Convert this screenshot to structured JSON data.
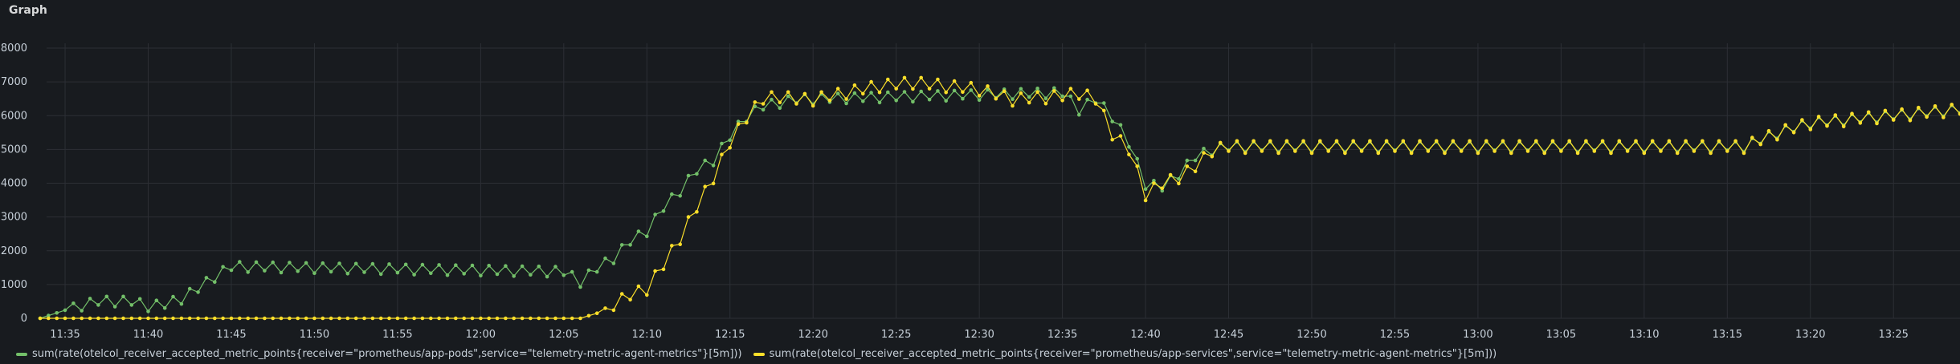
{
  "panel": {
    "title": "Graph"
  },
  "colors": {
    "background": "#181b1f",
    "grid": "#2c2f35",
    "series_a": "#73bf69",
    "series_b": "#fade2a"
  },
  "chart_data": {
    "type": "line",
    "x_tick_labels": [
      "11:35",
      "11:40",
      "11:45",
      "11:50",
      "11:55",
      "12:00",
      "12:05",
      "12:10",
      "12:15",
      "12:20",
      "12:25",
      "12:30",
      "12:35",
      "12:40",
      "12:45",
      "12:50",
      "12:55",
      "13:00",
      "13:05",
      "13:10",
      "13:15",
      "13:20",
      "13:25"
    ],
    "y_tick_labels": [
      "0",
      "1000",
      "2000",
      "3000",
      "4000",
      "5000",
      "6000",
      "7000",
      "8000"
    ],
    "ylim": [
      0,
      8000
    ],
    "xlim": [
      "11:33:30",
      "13:29"
    ],
    "grid": true,
    "legend_position": "bottom",
    "series": [
      {
        "name": "sum(rate(otelcol_receiver_accepted_metric_points{receiver=\"prometheus/app-pods\",service=\"telemetry-metric-agent-metrics\"}[5m]))",
        "keyframes": [
          [
            "11:33:30",
            0
          ],
          [
            "11:36",
            400
          ],
          [
            "11:37",
            520
          ],
          [
            "11:39",
            520
          ],
          [
            "11:40",
            380
          ],
          [
            "11:41",
            430
          ],
          [
            "11:42",
            600
          ],
          [
            "11:43",
            900
          ],
          [
            "11:44",
            1250
          ],
          [
            "11:45",
            1550
          ],
          [
            "12:05",
            1400
          ],
          [
            "12:06",
            1100
          ],
          [
            "12:07",
            1500
          ],
          [
            "12:08",
            1800
          ],
          [
            "12:09",
            2300
          ],
          [
            "12:10",
            2600
          ],
          [
            "12:11",
            3300
          ],
          [
            "12:12",
            3800
          ],
          [
            "12:13",
            4400
          ],
          [
            "12:14",
            4700
          ],
          [
            "12:15",
            5400
          ],
          [
            "12:16",
            6000
          ],
          [
            "12:17",
            6300
          ],
          [
            "12:18",
            6400
          ],
          [
            "12:19",
            6500
          ],
          [
            "12:35",
            6700
          ],
          [
            "12:36",
            6200
          ],
          [
            "12:37",
            6500
          ],
          [
            "12:38",
            6000
          ],
          [
            "12:39",
            5200
          ],
          [
            "12:40",
            4000
          ],
          [
            "12:41",
            3900
          ],
          [
            "12:42",
            4300
          ],
          [
            "12:43",
            4800
          ],
          [
            "12:44",
            5000
          ],
          [
            "12:45",
            5100
          ],
          [
            "13:16",
            5100
          ],
          [
            "13:18",
            5500
          ],
          [
            "13:20",
            5800
          ],
          [
            "13:29",
            6200
          ]
        ],
        "wiggle": 250
      },
      {
        "name": "sum(rate(otelcol_receiver_accepted_metric_points{receiver=\"prometheus/app-services\",service=\"telemetry-metric-agent-metrics\"}[5m]))",
        "keyframes": [
          [
            "11:33:30",
            0
          ],
          [
            "12:06",
            0
          ],
          [
            "12:07",
            150
          ],
          [
            "12:08",
            450
          ],
          [
            "12:09",
            700
          ],
          [
            "12:10",
            900
          ],
          [
            "12:11",
            1600
          ],
          [
            "12:12",
            2400
          ],
          [
            "12:13",
            3300
          ],
          [
            "12:14",
            4200
          ],
          [
            "12:15",
            5200
          ],
          [
            "12:16",
            6000
          ],
          [
            "12:17",
            6500
          ],
          [
            "12:18",
            6600
          ],
          [
            "12:19",
            6500
          ],
          [
            "12:20",
            6500
          ],
          [
            "12:24",
            6900
          ],
          [
            "12:26",
            7000
          ],
          [
            "12:30",
            6800
          ],
          [
            "12:32",
            6500
          ],
          [
            "12:35",
            6600
          ],
          [
            "12:36",
            6700
          ],
          [
            "12:37",
            6500
          ],
          [
            "12:38",
            5500
          ],
          [
            "12:39",
            5000
          ],
          [
            "12:40",
            3700
          ],
          [
            "12:41",
            4000
          ],
          [
            "12:42",
            4200
          ],
          [
            "12:43",
            4500
          ],
          [
            "12:44",
            5000
          ],
          [
            "12:45",
            5100
          ],
          [
            "13:16",
            5100
          ],
          [
            "13:18",
            5500
          ],
          [
            "13:20",
            5800
          ],
          [
            "13:29",
            6200
          ]
        ],
        "wiggle": 300
      }
    ]
  },
  "legend": {
    "items": [
      {
        "label": "sum(rate(otelcol_receiver_accepted_metric_points{receiver=\"prometheus/app-pods\",service=\"telemetry-metric-agent-metrics\"}[5m]))",
        "color": "#73bf69"
      },
      {
        "label": "sum(rate(otelcol_receiver_accepted_metric_points{receiver=\"prometheus/app-services\",service=\"telemetry-metric-agent-metrics\"}[5m]))",
        "color": "#fade2a"
      }
    ]
  }
}
